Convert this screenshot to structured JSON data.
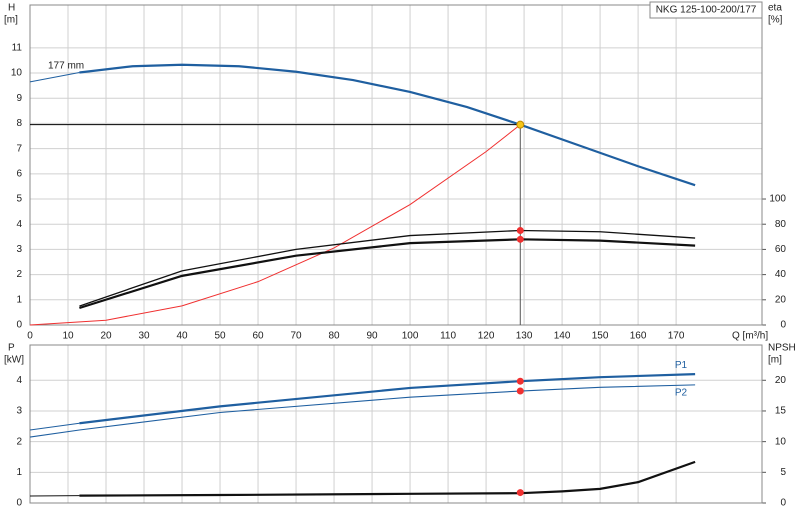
{
  "chart_data": [
    {
      "type": "line",
      "title": "NKG 125-100-200/177",
      "x_label": "Q [m³/h]",
      "y_label": "H",
      "y_unit": "[m]",
      "y2_label": "eta",
      "y2_unit": "[%]",
      "annotations": [
        "177 mm"
      ],
      "xlim": [
        0,
        192.6
      ],
      "xticks": [
        0,
        10,
        20,
        30,
        40,
        50,
        60,
        70,
        80,
        90,
        100,
        110,
        120,
        130,
        140,
        150,
        160,
        170
      ],
      "ylim": [
        0,
        12.7
      ],
      "yticks": [
        0,
        1,
        2,
        3,
        4,
        5,
        6,
        7,
        8,
        9,
        10,
        11
      ],
      "y2lim": [
        0,
        254
      ],
      "y2ticks": [
        0,
        20,
        40,
        60,
        80,
        100
      ],
      "grid": true,
      "show_xtick_labels": true,
      "series": [
        {
          "color": "#1f5fa0",
          "width": 1,
          "x": [
            0,
            13
          ],
          "values": [
            9.65,
            10.02
          ]
        },
        {
          "color": "#1f5fa0",
          "width": 2.2,
          "x": [
            13,
            27,
            40,
            55,
            70,
            85,
            100,
            115,
            129,
            145,
            160,
            175
          ],
          "values": [
            10.02,
            10.27,
            10.33,
            10.27,
            10.05,
            9.72,
            9.25,
            8.65,
            7.95,
            7.1,
            6.3,
            5.55
          ]
        },
        {
          "color": "#f03030",
          "width": 1,
          "x": [
            0,
            20,
            40,
            60,
            80,
            100,
            120,
            129
          ],
          "values": [
            0,
            0.19,
            0.76,
            1.72,
            3.06,
            4.78,
            6.88,
            7.95
          ]
        },
        {
          "color": "#111111",
          "width": 1.3,
          "axis": "y2",
          "x": [
            13,
            40,
            70,
            100,
            129,
            150,
            175
          ],
          "values": [
            15,
            43,
            60,
            71,
            75,
            74,
            69
          ]
        },
        {
          "color": "#111111",
          "width": 2.2,
          "axis": "y2",
          "x": [
            13,
            40,
            70,
            100,
            129,
            150,
            175
          ],
          "values": [
            13.5,
            39,
            55,
            65,
            68,
            67,
            63
          ]
        },
        {
          "color": "#f5c518",
          "style": "dot",
          "guide": true,
          "x": [
            129
          ],
          "values": [
            7.95
          ]
        },
        {
          "color": "#f03030",
          "style": "dot",
          "axis": "y2",
          "x": [
            129,
            129
          ],
          "values": [
            75,
            68
          ]
        }
      ]
    },
    {
      "type": "line",
      "y_label": "P",
      "y_unit": "[kW]",
      "y2_label": "NPSH",
      "y2_unit": "[m]",
      "xlim": [
        0,
        192.6
      ],
      "xticks": [
        0,
        10,
        20,
        30,
        40,
        50,
        60,
        70,
        80,
        90,
        100,
        110,
        120,
        130,
        140,
        150,
        160,
        170
      ],
      "ylim": [
        0,
        5.15
      ],
      "yticks": [
        0,
        1,
        2,
        3,
        4
      ],
      "y2lim": [
        0,
        25.75
      ],
      "y2ticks": [
        0,
        5,
        10,
        15,
        20
      ],
      "grid": true,
      "show_xtick_labels": false,
      "series": [
        {
          "color": "#1f5fa0",
          "width": 1,
          "x": [
            0,
            13
          ],
          "values": [
            2.38,
            2.6
          ]
        },
        {
          "name": "P1",
          "color": "#1f5fa0",
          "width": 2.2,
          "x": [
            13,
            50,
            100,
            129,
            150,
            175
          ],
          "values": [
            2.6,
            3.15,
            3.75,
            3.97,
            4.1,
            4.2
          ]
        },
        {
          "name": "P2",
          "color": "#1f5fa0",
          "width": 1.1,
          "x": [
            0,
            13,
            50,
            100,
            129,
            150,
            175
          ],
          "values": [
            2.15,
            2.38,
            2.95,
            3.45,
            3.65,
            3.77,
            3.85
          ]
        },
        {
          "color": "#111111",
          "width": 1,
          "axis": "y2",
          "x": [
            0,
            13
          ],
          "values": [
            1.15,
            1.2
          ]
        },
        {
          "color": "#111111",
          "width": 2.2,
          "axis": "y2",
          "x": [
            13,
            50,
            100,
            129,
            140,
            150,
            160,
            175
          ],
          "values": [
            1.2,
            1.3,
            1.5,
            1.6,
            1.9,
            2.3,
            3.4,
            6.7
          ]
        },
        {
          "color": "#f03030",
          "style": "dot",
          "x": [
            129,
            129
          ],
          "values": [
            3.97,
            3.65
          ]
        },
        {
          "color": "#f03030",
          "style": "dot",
          "axis": "y2",
          "x": [
            129
          ],
          "values": [
            1.7
          ]
        }
      ]
    }
  ]
}
